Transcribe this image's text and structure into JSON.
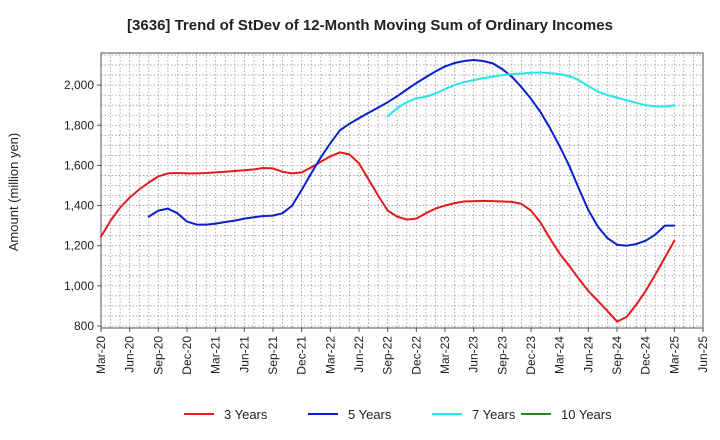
{
  "chart_data": {
    "type": "line",
    "title": "[3636]  Trend of StDev of 12-Month Moving Sum of Ordinary Incomes",
    "xlabel": "",
    "ylabel": "Amount (million yen)",
    "ylim": [
      790,
      2160
    ],
    "yticks": [
      800,
      1000,
      1200,
      1400,
      1600,
      1800,
      2000
    ],
    "ytick_labels": [
      "800",
      "1,000",
      "1,200",
      "1,400",
      "1,600",
      "1,800",
      "2,000"
    ],
    "xtick_labels": [
      "Mar-20",
      "Jun-20",
      "Sep-20",
      "Dec-20",
      "Mar-21",
      "Jun-21",
      "Sep-21",
      "Dec-21",
      "Mar-22",
      "Jun-22",
      "Sep-22",
      "Dec-22",
      "Mar-23",
      "Jun-23",
      "Sep-23",
      "Dec-23",
      "Mar-24",
      "Jun-24",
      "Sep-24",
      "Dec-24",
      "Mar-25",
      "Jun-25"
    ],
    "x_range_months": [
      0,
      63
    ],
    "grid": true,
    "series": [
      {
        "name": "3 Years",
        "color": "#e41a1c",
        "x": [
          0,
          1,
          2,
          3,
          4,
          5,
          6,
          7,
          8,
          9,
          10,
          11,
          12,
          13,
          14,
          15,
          16,
          17,
          18,
          19,
          20,
          21,
          22,
          23,
          24,
          25,
          26,
          27,
          28,
          29,
          30,
          31,
          32,
          33,
          34,
          35,
          36,
          37,
          38,
          39,
          40,
          41,
          42,
          43,
          44,
          45,
          46,
          47,
          48,
          49,
          50,
          51,
          52,
          53,
          54,
          55,
          56,
          57,
          58,
          59,
          60
        ],
        "values": [
          1245,
          1325,
          1390,
          1440,
          1480,
          1515,
          1545,
          1560,
          1562,
          1560,
          1560,
          1562,
          1565,
          1568,
          1572,
          1576,
          1580,
          1587,
          1585,
          1568,
          1560,
          1565,
          1590,
          1618,
          1645,
          1665,
          1655,
          1610,
          1530,
          1450,
          1375,
          1345,
          1330,
          1335,
          1362,
          1385,
          1400,
          1412,
          1420,
          1422,
          1423,
          1422,
          1420,
          1418,
          1408,
          1375,
          1315,
          1235,
          1160,
          1100,
          1035,
          975,
          925,
          875,
          822,
          845,
          905,
          975,
          1055,
          1140,
          1225
        ]
      },
      {
        "name": "5 Years",
        "color": "#0a1fd0",
        "x": [
          5,
          6,
          7,
          8,
          9,
          10,
          11,
          12,
          13,
          14,
          15,
          16,
          17,
          18,
          19,
          20,
          21,
          22,
          23,
          24,
          25,
          26,
          27,
          28,
          29,
          30,
          31,
          32,
          33,
          34,
          35,
          36,
          37,
          38,
          39,
          40,
          41,
          42,
          43,
          44,
          45,
          46,
          47,
          48,
          49,
          50,
          51,
          52,
          53,
          54,
          55,
          56,
          57,
          58,
          59,
          60
        ],
        "values": [
          1345,
          1375,
          1385,
          1362,
          1320,
          1305,
          1305,
          1310,
          1318,
          1325,
          1335,
          1342,
          1348,
          1350,
          1362,
          1400,
          1478,
          1560,
          1640,
          1710,
          1775,
          1808,
          1835,
          1862,
          1888,
          1915,
          1945,
          1978,
          2010,
          2040,
          2068,
          2093,
          2110,
          2120,
          2125,
          2120,
          2108,
          2080,
          2042,
          1990,
          1932,
          1865,
          1785,
          1695,
          1598,
          1485,
          1378,
          1295,
          1238,
          1205,
          1200,
          1208,
          1225,
          1255,
          1300,
          1300
        ]
      },
      {
        "name": "7 Years",
        "color": "#22e8ee",
        "x": [
          30,
          31,
          32,
          33,
          34,
          35,
          36,
          37,
          38,
          39,
          40,
          41,
          42,
          43,
          44,
          45,
          46,
          47,
          48,
          49,
          50,
          51,
          52,
          53,
          54,
          55,
          56,
          57,
          58,
          59,
          60
        ],
        "values": [
          1845,
          1885,
          1915,
          1935,
          1942,
          1958,
          1980,
          2000,
          2015,
          2025,
          2035,
          2042,
          2050,
          2055,
          2058,
          2062,
          2063,
          2060,
          2055,
          2045,
          2025,
          1995,
          1968,
          1950,
          1938,
          1925,
          1912,
          1900,
          1895,
          1893,
          1900
        ]
      },
      {
        "name": "10 Years",
        "color": "#1a8a1a",
        "x": [],
        "values": []
      }
    ]
  }
}
